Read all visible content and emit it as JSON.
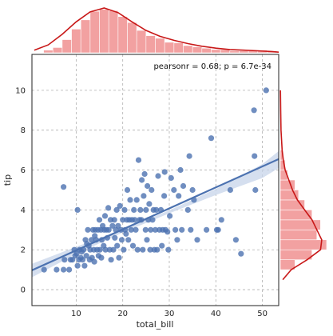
{
  "chart_data": {
    "type": "scatter",
    "xlabel": "total_bill",
    "ylabel": "tip",
    "xlim": [
      0.5,
      53.5
    ],
    "ylim": [
      -0.8,
      11.8
    ],
    "xticks": [
      10,
      20,
      30,
      40,
      50
    ],
    "yticks": [
      0,
      2,
      4,
      6,
      8,
      10
    ],
    "grid": true,
    "annotation": "pearsonr = 0.68; p = 6.7e-34",
    "colors": {
      "points": "#4c72b0",
      "regression": "#4c72b0",
      "ci_band": "#c7d4ea",
      "marginal_hist": "#f08a8a",
      "marginal_kde": "#c81818",
      "grid": "#b0b0b0",
      "frame": "#222222"
    },
    "regression": {
      "x": [
        0.5,
        53.5
      ],
      "y": [
        0.97,
        6.55
      ],
      "ci_upper_x": [
        0.5,
        10,
        20,
        30,
        40,
        50,
        53.5
      ],
      "ci_upper_y": [
        1.3,
        2.15,
        3.02,
        3.98,
        5.05,
        6.3,
        6.95
      ],
      "ci_lower_x": [
        0.5,
        10,
        20,
        30,
        40,
        50,
        53.5
      ],
      "ci_lower_y": [
        0.62,
        1.79,
        2.86,
        3.83,
        4.75,
        5.6,
        6.1
      ]
    },
    "points": [
      [
        3.1,
        1.0
      ],
      [
        5.8,
        1.0
      ],
      [
        7.3,
        1.0
      ],
      [
        7.5,
        1.5
      ],
      [
        7.3,
        5.15
      ],
      [
        8.5,
        1.0
      ],
      [
        8.8,
        1.5
      ],
      [
        9.2,
        1.5
      ],
      [
        9.6,
        2.0
      ],
      [
        9.8,
        1.7
      ],
      [
        10.1,
        1.8
      ],
      [
        10.3,
        1.2
      ],
      [
        10.6,
        1.5
      ],
      [
        10.3,
        4.0
      ],
      [
        10.7,
        2.0
      ],
      [
        11.0,
        1.6
      ],
      [
        11.2,
        1.9
      ],
      [
        11.4,
        1.5
      ],
      [
        11.6,
        2.0
      ],
      [
        11.8,
        1.2
      ],
      [
        12.0,
        2.5
      ],
      [
        12.2,
        1.7
      ],
      [
        12.3,
        2.3
      ],
      [
        12.5,
        3.0
      ],
      [
        12.7,
        2.2
      ],
      [
        12.9,
        1.5
      ],
      [
        13.0,
        2.0
      ],
      [
        13.3,
        2.5
      ],
      [
        13.4,
        1.6
      ],
      [
        13.6,
        3.0
      ],
      [
        13.8,
        2.0
      ],
      [
        13.9,
        1.4
      ],
      [
        14.0,
        2.7
      ],
      [
        14.1,
        3.0
      ],
      [
        14.3,
        2.5
      ],
      [
        14.5,
        2.0
      ],
      [
        14.7,
        3.0
      ],
      [
        14.8,
        1.7
      ],
      [
        15.0,
        3.5
      ],
      [
        15.1,
        2.0
      ],
      [
        15.3,
        3.0
      ],
      [
        15.4,
        1.6
      ],
      [
        15.5,
        2.5
      ],
      [
        15.7,
        3.2
      ],
      [
        15.9,
        2.2
      ],
      [
        16.0,
        3.0
      ],
      [
        16.2,
        3.7
      ],
      [
        16.3,
        2.0
      ],
      [
        16.5,
        3.0
      ],
      [
        16.7,
        2.6
      ],
      [
        16.9,
        4.1
      ],
      [
        17.0,
        3.0
      ],
      [
        17.2,
        2.0
      ],
      [
        17.4,
        3.5
      ],
      [
        17.5,
        1.5
      ],
      [
        17.8,
        3.2
      ],
      [
        18.0,
        2.0
      ],
      [
        18.2,
        3.5
      ],
      [
        18.3,
        2.6
      ],
      [
        18.5,
        3.0
      ],
      [
        18.7,
        4.0
      ],
      [
        18.8,
        2.2
      ],
      [
        19.0,
        3.2
      ],
      [
        19.2,
        1.6
      ],
      [
        19.4,
        4.2
      ],
      [
        19.6,
        3.0
      ],
      [
        19.8,
        2.5
      ],
      [
        20.0,
        3.5
      ],
      [
        20.2,
        2.0
      ],
      [
        20.4,
        4.0
      ],
      [
        20.5,
        3.0
      ],
      [
        20.7,
        2.8
      ],
      [
        20.9,
        3.5
      ],
      [
        21.0,
        5.0
      ],
      [
        21.2,
        2.5
      ],
      [
        21.4,
        3.5
      ],
      [
        21.6,
        4.5
      ],
      [
        21.8,
        3.0
      ],
      [
        22.0,
        3.5
      ],
      [
        22.2,
        2.2
      ],
      [
        22.4,
        4.0
      ],
      [
        22.6,
        3.5
      ],
      [
        22.8,
        3.0
      ],
      [
        23.0,
        4.5
      ],
      [
        23.2,
        2.0
      ],
      [
        23.4,
        6.5
      ],
      [
        23.6,
        3.5
      ],
      [
        23.8,
        4.0
      ],
      [
        24.0,
        3.5
      ],
      [
        24.1,
        5.5
      ],
      [
        24.3,
        2.0
      ],
      [
        24.5,
        4.7
      ],
      [
        24.7,
        5.8
      ],
      [
        24.9,
        3.0
      ],
      [
        25.0,
        4.0
      ],
      [
        25.2,
        2.5
      ],
      [
        25.3,
        5.2
      ],
      [
        25.5,
        3.5
      ],
      [
        25.7,
        4.3
      ],
      [
        25.9,
        2.0
      ],
      [
        26.0,
        3.0
      ],
      [
        26.2,
        5.0
      ],
      [
        26.4,
        3.5
      ],
      [
        26.6,
        4.0
      ],
      [
        26.8,
        2.0
      ],
      [
        27.0,
        3.0
      ],
      [
        27.2,
        4.0
      ],
      [
        27.4,
        2.0
      ],
      [
        27.6,
        5.7
      ],
      [
        27.9,
        3.0
      ],
      [
        28.2,
        4.0
      ],
      [
        28.4,
        2.2
      ],
      [
        28.6,
        3.0
      ],
      [
        28.9,
        4.7
      ],
      [
        29.0,
        5.9
      ],
      [
        29.2,
        3.0
      ],
      [
        29.6,
        2.9
      ],
      [
        29.8,
        2.0
      ],
      [
        30.1,
        3.7
      ],
      [
        30.4,
        5.6
      ],
      [
        31.0,
        5.0
      ],
      [
        31.3,
        3.0
      ],
      [
        31.7,
        2.5
      ],
      [
        32.0,
        4.7
      ],
      [
        32.4,
        6.0
      ],
      [
        32.7,
        3.0
      ],
      [
        33.0,
        5.2
      ],
      [
        34.0,
        4.0
      ],
      [
        34.3,
        6.7
      ],
      [
        34.6,
        3.0
      ],
      [
        35.0,
        5.0
      ],
      [
        35.3,
        4.5
      ],
      [
        36.0,
        2.5
      ],
      [
        38.0,
        3.0
      ],
      [
        39.0,
        7.6
      ],
      [
        40.2,
        3.0
      ],
      [
        40.5,
        3.0
      ],
      [
        41.2,
        3.5
      ],
      [
        43.1,
        5.0
      ],
      [
        44.3,
        2.5
      ],
      [
        45.4,
        1.8
      ],
      [
        48.2,
        9.0
      ],
      [
        48.3,
        6.7
      ],
      [
        48.5,
        5.0
      ],
      [
        50.8,
        10.0
      ]
    ],
    "marginal_x": {
      "bin_edges": [
        3,
        5,
        7,
        9,
        11,
        13,
        15,
        17,
        19,
        21,
        23,
        25,
        27,
        29,
        31,
        33,
        35,
        37,
        39,
        41,
        43,
        45,
        47,
        49,
        51,
        53
      ],
      "density": [
        0.004,
        0.008,
        0.02,
        0.036,
        0.05,
        0.063,
        0.066,
        0.064,
        0.055,
        0.046,
        0.034,
        0.026,
        0.022,
        0.016,
        0.015,
        0.011,
        0.009,
        0.007,
        0.005,
        0.005,
        0.003,
        0.003,
        0.003,
        0.004,
        0.002
      ],
      "kde_x": [
        1,
        4,
        7,
        10,
        13,
        16,
        19,
        22,
        25,
        28,
        31,
        34,
        37,
        40,
        43,
        46,
        49,
        52,
        53.5
      ],
      "kde_y": [
        0.004,
        0.012,
        0.028,
        0.047,
        0.062,
        0.068,
        0.061,
        0.047,
        0.034,
        0.025,
        0.019,
        0.014,
        0.01,
        0.007,
        0.005,
        0.004,
        0.003,
        0.002,
        0.001
      ]
    },
    "marginal_y": {
      "bin_edges": [
        1.0,
        1.5,
        2.0,
        2.5,
        3.0,
        3.5,
        4.0,
        4.5,
        5.0,
        5.5,
        6.0,
        6.5,
        7.0
      ],
      "density": [
        0.12,
        0.26,
        0.38,
        0.3,
        0.33,
        0.26,
        0.2,
        0.15,
        0.12,
        0.06,
        0.04,
        0.02
      ],
      "kde_y": [
        0.5,
        1.0,
        1.5,
        2.0,
        2.5,
        3.0,
        3.5,
        4.0,
        4.5,
        5.0,
        5.5,
        6.0,
        6.5,
        7.0,
        8.0,
        9.0,
        10.0
      ],
      "kde_x": [
        0.02,
        0.09,
        0.22,
        0.33,
        0.34,
        0.3,
        0.26,
        0.2,
        0.14,
        0.1,
        0.07,
        0.04,
        0.025,
        0.015,
        0.006,
        0.003,
        0.001
      ]
    }
  }
}
